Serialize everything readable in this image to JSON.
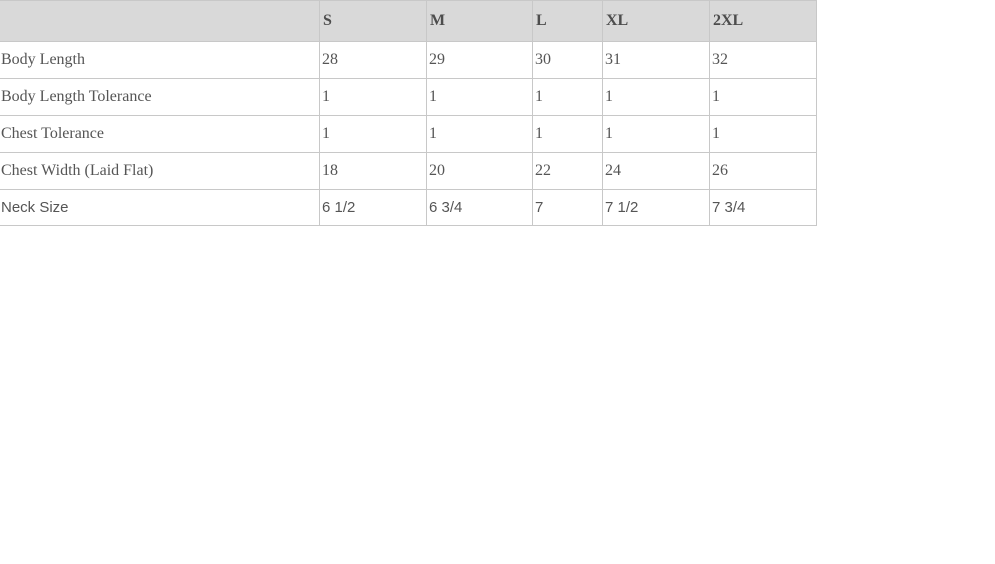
{
  "table": {
    "corner_label": "",
    "columns": [
      "S",
      "M",
      "L",
      "XL",
      "2XL"
    ],
    "rows": [
      {
        "label": "Body Length",
        "values": [
          "28",
          "29",
          "30",
          "31",
          "32"
        ]
      },
      {
        "label": "Body Length Tolerance",
        "values": [
          "1",
          "1",
          "1",
          "1",
          "1"
        ]
      },
      {
        "label": "Chest Tolerance",
        "values": [
          "1",
          "1",
          "1",
          "1",
          "1"
        ]
      },
      {
        "label": "Chest Width (Laid Flat)",
        "values": [
          "18",
          "20",
          "22",
          "24",
          "26"
        ]
      },
      {
        "label": "Neck Size",
        "values": [
          "6 1/2",
          "6 3/4",
          "7",
          "7 1/2",
          "7 3/4"
        ]
      }
    ],
    "colors": {
      "header_bg": "#d9d9d9",
      "border": "#c8c8c8",
      "header_text": "#4d4d4d",
      "body_text": "#555555"
    }
  }
}
